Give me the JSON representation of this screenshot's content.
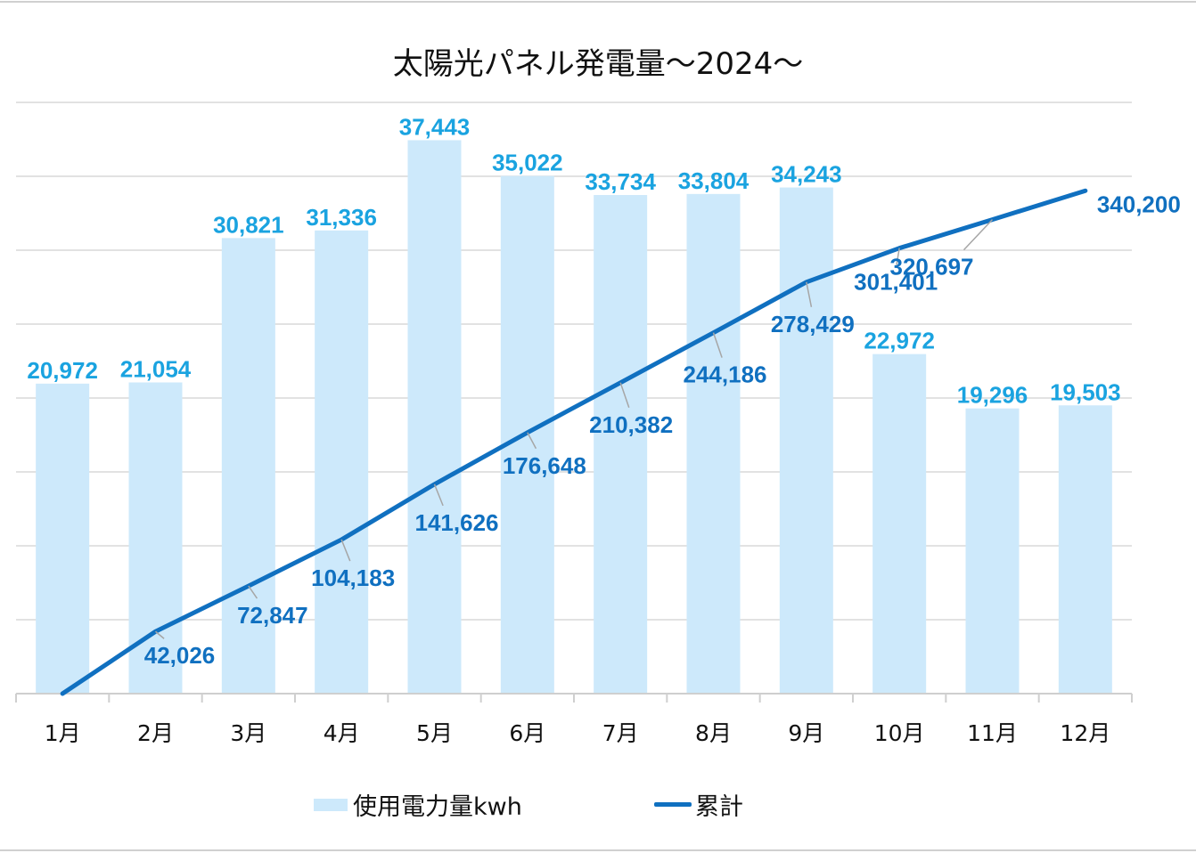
{
  "chart_data": {
    "type": "bar+line",
    "title": "太陽光パネル発電量～2024～",
    "categories": [
      "1月",
      "2月",
      "3月",
      "4月",
      "5月",
      "6月",
      "7月",
      "8月",
      "9月",
      "10月",
      "11月",
      "12月"
    ],
    "series": [
      {
        "name": "使用電力量kwh",
        "type": "bar",
        "axis": "primary",
        "color": "#cde9fb",
        "label_color": "#1aa3e0",
        "values": [
          20972,
          21054,
          30821,
          31336,
          37443,
          35022,
          33734,
          33804,
          34243,
          22972,
          19296,
          19503
        ],
        "labels": [
          "20,972",
          "21,054",
          "30,821",
          "31,336",
          "37,443",
          "35,022",
          "33,734",
          "33,804",
          "34,243",
          "22,972",
          "19,296",
          "19,503"
        ]
      },
      {
        "name": "累計",
        "type": "line",
        "axis": "secondary",
        "color": "#1070c0",
        "label_color": "#1070c0",
        "values": [
          0,
          42026,
          72847,
          104183,
          141626,
          176648,
          210382,
          244186,
          278429,
          301401,
          320697,
          340200
        ],
        "labels": [
          "",
          "42,026",
          "72,847",
          "104,183",
          "141,626",
          "176,648",
          "210,382",
          "244,186",
          "278,429",
          "301,401",
          "320,697",
          "340,200"
        ]
      }
    ],
    "primary_ylim": [
      0,
      40000
    ],
    "secondary_ylim": [
      0,
      400000
    ],
    "grid": true,
    "legend": "bottom"
  }
}
